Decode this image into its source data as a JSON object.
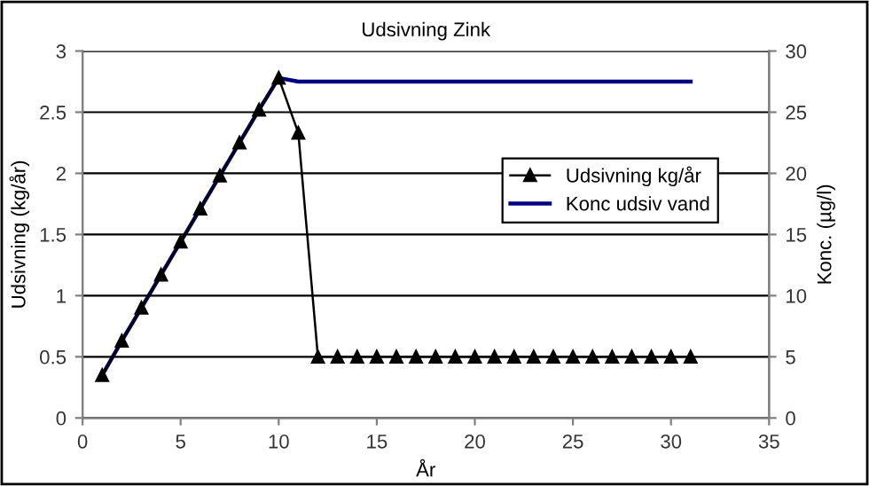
{
  "chart_data": {
    "type": "line",
    "title": "Udsivning Zink",
    "xlabel": "År",
    "ylabel": "Udsivning (kg/år)",
    "y2label": "Konc. (µg/l)",
    "x": [
      1,
      2,
      3,
      4,
      5,
      6,
      7,
      8,
      9,
      10,
      11,
      12,
      13,
      14,
      15,
      16,
      17,
      18,
      19,
      20,
      21,
      22,
      23,
      24,
      25,
      26,
      27,
      28,
      29,
      30,
      31
    ],
    "series": [
      {
        "name": "Udsivning kg/år",
        "color": "#000000",
        "marker": "triangle",
        "values": [
          0.35,
          0.63,
          0.9,
          1.17,
          1.44,
          1.71,
          1.98,
          2.25,
          2.52,
          2.78,
          2.33,
          0.5,
          0.5,
          0.5,
          0.5,
          0.5,
          0.5,
          0.5,
          0.5,
          0.5,
          0.5,
          0.5,
          0.5,
          0.5,
          0.5,
          0.5,
          0.5,
          0.5,
          0.5,
          0.5,
          0.5
        ]
      },
      {
        "name": "Konc udsiv vand",
        "color": "#000080",
        "axis": "y2",
        "values": [
          3.5,
          6.3,
          9.0,
          11.7,
          14.4,
          17.1,
          19.8,
          22.5,
          25.2,
          27.8,
          27.5,
          27.5,
          27.5,
          27.5,
          27.5,
          27.5,
          27.5,
          27.5,
          27.5,
          27.5,
          27.5,
          27.5,
          27.5,
          27.5,
          27.5,
          27.5,
          27.5,
          27.5,
          27.5,
          27.5,
          27.5
        ]
      }
    ],
    "xlim": [
      0,
      35
    ],
    "xticks": [
      0,
      5,
      10,
      15,
      20,
      25,
      30,
      35
    ],
    "ylim": [
      0,
      3
    ],
    "yticks": [
      0,
      0.5,
      1,
      1.5,
      2,
      2.5,
      3
    ],
    "y2lim": [
      0,
      30
    ],
    "y2ticks": [
      0,
      5,
      10,
      15,
      20,
      25,
      30
    ],
    "grid": "y",
    "legend": "right"
  }
}
